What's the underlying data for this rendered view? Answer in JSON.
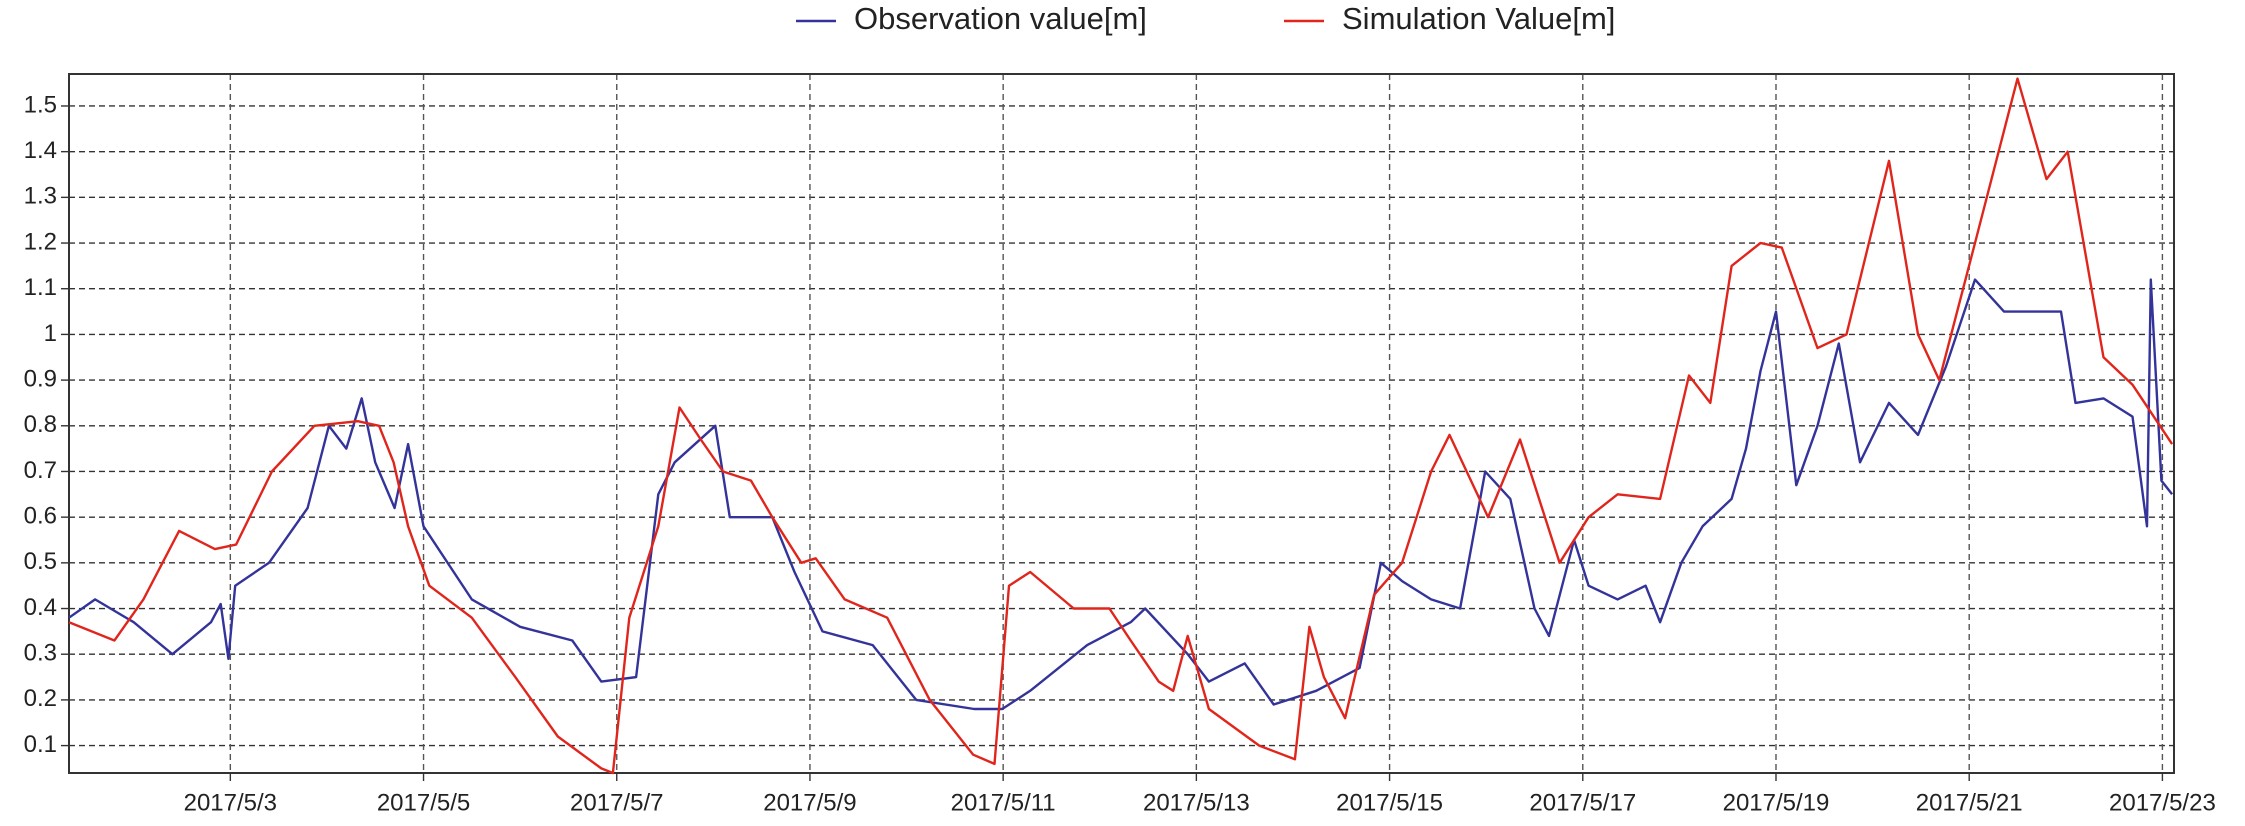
{
  "chart_data": {
    "type": "line",
    "xlim": [
      1.33,
      23.12
    ],
    "ylim": [
      0.04,
      1.57
    ],
    "xticks": [
      {
        "value": 3,
        "label": "2017/5/3"
      },
      {
        "value": 5,
        "label": "2017/5/5"
      },
      {
        "value": 7,
        "label": "2017/5/7"
      },
      {
        "value": 9,
        "label": "2017/5/9"
      },
      {
        "value": 11,
        "label": "2017/5/11"
      },
      {
        "value": 13,
        "label": "2017/5/13"
      },
      {
        "value": 15,
        "label": "2017/5/15"
      },
      {
        "value": 17,
        "label": "2017/5/17"
      },
      {
        "value": 19,
        "label": "2017/5/19"
      },
      {
        "value": 21,
        "label": "2017/5/21"
      },
      {
        "value": 23,
        "label": "2017/5/23"
      }
    ],
    "yticks": [
      0.1,
      0.2,
      0.3,
      0.4,
      0.5,
      0.6,
      0.7,
      0.8,
      0.9,
      1,
      1.1,
      1.2,
      1.3,
      1.4,
      1.5
    ],
    "grid": true,
    "legend": "top",
    "series": [
      {
        "name": "Observation value[m]",
        "color": "#33339a",
        "x": [
          1.33,
          1.6,
          2.0,
          2.4,
          2.8,
          2.9,
          2.98,
          3.05,
          3.4,
          3.8,
          4.02,
          4.2,
          4.36,
          4.5,
          4.7,
          4.84,
          5.0,
          5.5,
          6.0,
          6.54,
          6.84,
          7.2,
          7.43,
          7.6,
          8.02,
          8.17,
          8.61,
          8.84,
          9.13,
          9.65,
          10.1,
          10.7,
          10.99,
          11.28,
          11.87,
          12.32,
          12.47,
          12.91,
          13.13,
          13.5,
          13.8,
          14.24,
          14.69,
          14.91,
          15.13,
          15.43,
          15.73,
          15.99,
          16.25,
          16.5,
          16.65,
          16.91,
          17.06,
          17.36,
          17.65,
          17.8,
          18.02,
          18.24,
          18.54,
          18.69,
          18.84,
          19.0,
          19.21,
          19.43,
          19.65,
          19.87,
          20.17,
          20.47,
          20.76,
          21.06,
          21.36,
          21.65,
          21.95,
          22.1,
          22.39,
          22.69,
          22.84,
          22.88,
          22.99,
          23.1
        ],
        "values": [
          0.38,
          0.42,
          0.37,
          0.3,
          0.37,
          0.41,
          0.29,
          0.45,
          0.5,
          0.62,
          0.8,
          0.75,
          0.86,
          0.72,
          0.62,
          0.76,
          0.58,
          0.42,
          0.36,
          0.33,
          0.24,
          0.25,
          0.65,
          0.72,
          0.8,
          0.6,
          0.6,
          0.48,
          0.35,
          0.32,
          0.2,
          0.18,
          0.18,
          0.22,
          0.32,
          0.37,
          0.4,
          0.3,
          0.24,
          0.28,
          0.19,
          0.22,
          0.27,
          0.5,
          0.46,
          0.42,
          0.4,
          0.7,
          0.64,
          0.4,
          0.34,
          0.55,
          0.45,
          0.42,
          0.45,
          0.37,
          0.5,
          0.58,
          0.64,
          0.75,
          0.92,
          1.05,
          0.67,
          0.8,
          0.98,
          0.72,
          0.85,
          0.78,
          0.93,
          1.12,
          1.05,
          1.05,
          1.05,
          0.85,
          0.86,
          0.82,
          0.58,
          1.12,
          0.68,
          0.65
        ]
      },
      {
        "name": "Simulation Value[m]",
        "color": "#e0261c",
        "x": [
          1.33,
          1.8,
          2.1,
          2.47,
          2.84,
          3.06,
          3.43,
          3.87,
          4.32,
          4.54,
          4.69,
          4.84,
          5.06,
          5.5,
          5.95,
          6.39,
          6.84,
          6.96,
          7.13,
          7.43,
          7.65,
          7.87,
          8.1,
          8.39,
          8.61,
          8.91,
          9.06,
          9.36,
          9.8,
          10.24,
          10.69,
          10.91,
          11.06,
          11.28,
          11.73,
          12.1,
          12.32,
          12.61,
          12.76,
          12.91,
          13.13,
          13.65,
          14.02,
          14.17,
          14.32,
          14.54,
          14.84,
          15.13,
          15.43,
          15.62,
          16.02,
          16.35,
          16.76,
          17.06,
          17.36,
          17.8,
          18.1,
          18.32,
          18.54,
          18.84,
          19.06,
          19.43,
          19.73,
          20.17,
          20.47,
          20.69,
          21.06,
          21.5,
          21.8,
          22.02,
          22.39,
          22.69,
          23.1
        ],
        "values": [
          0.37,
          0.33,
          0.42,
          0.57,
          0.53,
          0.54,
          0.7,
          0.8,
          0.81,
          0.8,
          0.72,
          0.58,
          0.45,
          0.38,
          0.25,
          0.12,
          0.05,
          0.04,
          0.38,
          0.58,
          0.84,
          0.77,
          0.7,
          0.68,
          0.6,
          0.5,
          0.51,
          0.42,
          0.38,
          0.2,
          0.08,
          0.06,
          0.45,
          0.48,
          0.4,
          0.4,
          0.33,
          0.24,
          0.22,
          0.34,
          0.18,
          0.1,
          0.07,
          0.36,
          0.25,
          0.16,
          0.43,
          0.5,
          0.7,
          0.78,
          0.6,
          0.77,
          0.5,
          0.6,
          0.65,
          0.64,
          0.91,
          0.85,
          1.15,
          1.2,
          1.19,
          0.97,
          1.0,
          1.38,
          1.0,
          0.9,
          1.2,
          1.56,
          1.34,
          1.4,
          0.95,
          0.89,
          0.76
        ]
      }
    ]
  }
}
